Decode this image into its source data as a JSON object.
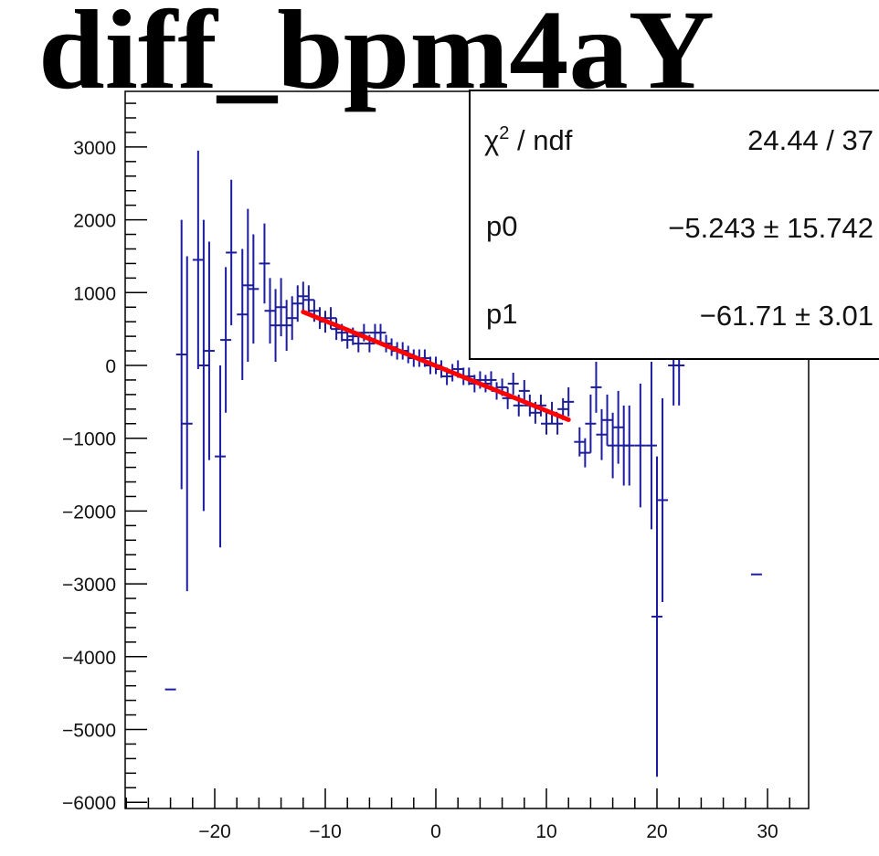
{
  "chart_data": {
    "type": "scatter",
    "title": "diff_bpm4aY",
    "xlabel": "",
    "ylabel": "",
    "xlim": [
      -28,
      34
    ],
    "ylim": [
      -6100,
      3700
    ],
    "x_ticks": [
      -20,
      -10,
      0,
      10,
      20,
      30
    ],
    "x_tick_labels": [
      "−20",
      "−10",
      "0",
      "10",
      "20",
      "30"
    ],
    "y_ticks": [
      -6000,
      -5000,
      -4000,
      -3000,
      -2000,
      -1000,
      0,
      1000,
      2000,
      3000
    ],
    "y_tick_labels": [
      "−6000",
      "−5000",
      "−4000",
      "−3000",
      "−2000",
      "−1000",
      "0",
      "1000",
      "2000",
      "3000"
    ],
    "grid": false,
    "series": [
      {
        "color": "#1c1ca0",
        "points": [
          {
            "x": -24,
            "y": -4450,
            "err": 0
          },
          {
            "x": -23,
            "y": 150,
            "err": 1850
          },
          {
            "x": -22.5,
            "y": -800,
            "err": 2300
          },
          {
            "x": -21.5,
            "y": 1450,
            "err": 1500
          },
          {
            "x": -21,
            "y": 0,
            "err": 2000
          },
          {
            "x": -20.5,
            "y": 200,
            "err": 1500
          },
          {
            "x": -19.5,
            "y": -1250,
            "err": 1250
          },
          {
            "x": -19,
            "y": 350,
            "err": 1000
          },
          {
            "x": -18.5,
            "y": 1550,
            "err": 1000
          },
          {
            "x": -17.5,
            "y": 700,
            "err": 900
          },
          {
            "x": -17,
            "y": 1100,
            "err": 1050
          },
          {
            "x": -16.5,
            "y": 1050,
            "err": 750
          },
          {
            "x": -15.5,
            "y": 1400,
            "err": 550
          },
          {
            "x": -15,
            "y": 750,
            "err": 450
          },
          {
            "x": -14.5,
            "y": 550,
            "err": 500
          },
          {
            "x": -14,
            "y": 800,
            "err": 400
          },
          {
            "x": -13.5,
            "y": 550,
            "err": 350
          },
          {
            "x": -13,
            "y": 650,
            "err": 300
          },
          {
            "x": -12.5,
            "y": 850,
            "err": 250
          },
          {
            "x": -12,
            "y": 950,
            "err": 200
          },
          {
            "x": -11.5,
            "y": 900,
            "err": 200
          },
          {
            "x": -11,
            "y": 750,
            "err": 150
          },
          {
            "x": -10.5,
            "y": 650,
            "err": 150
          },
          {
            "x": -10,
            "y": 600,
            "err": 150
          },
          {
            "x": -9.5,
            "y": 650,
            "err": 150
          },
          {
            "x": -9,
            "y": 500,
            "err": 150
          },
          {
            "x": -8.5,
            "y": 450,
            "err": 120
          },
          {
            "x": -8,
            "y": 350,
            "err": 120
          },
          {
            "x": -7.5,
            "y": 400,
            "err": 120
          },
          {
            "x": -7,
            "y": 300,
            "err": 120
          },
          {
            "x": -6.5,
            "y": 450,
            "err": 120
          },
          {
            "x": -6,
            "y": 300,
            "err": 120
          },
          {
            "x": -5.5,
            "y": 450,
            "err": 120
          },
          {
            "x": -5,
            "y": 450,
            "err": 120
          },
          {
            "x": -4.5,
            "y": 300,
            "err": 120
          },
          {
            "x": -4,
            "y": 250,
            "err": 120
          },
          {
            "x": -3.5,
            "y": 200,
            "err": 120
          },
          {
            "x": -3,
            "y": 200,
            "err": 120
          },
          {
            "x": -2.5,
            "y": 150,
            "err": 120
          },
          {
            "x": -2,
            "y": 100,
            "err": 120
          },
          {
            "x": -1.5,
            "y": 100,
            "err": 120
          },
          {
            "x": -1,
            "y": 100,
            "err": 120
          },
          {
            "x": -0.5,
            "y": 0,
            "err": 120
          },
          {
            "x": 0,
            "y": 0,
            "err": 120
          },
          {
            "x": 0.5,
            "y": -50,
            "err": 120
          },
          {
            "x": 1,
            "y": -150,
            "err": 120
          },
          {
            "x": 1.5,
            "y": -100,
            "err": 120
          },
          {
            "x": 2,
            "y": -50,
            "err": 120
          },
          {
            "x": 2.5,
            "y": -150,
            "err": 120
          },
          {
            "x": 3,
            "y": -150,
            "err": 120
          },
          {
            "x": 3.5,
            "y": -250,
            "err": 120
          },
          {
            "x": 4,
            "y": -200,
            "err": 120
          },
          {
            "x": 4.5,
            "y": -250,
            "err": 120
          },
          {
            "x": 5,
            "y": -200,
            "err": 120
          },
          {
            "x": 5.5,
            "y": -350,
            "err": 120
          },
          {
            "x": 6,
            "y": -300,
            "err": 120
          },
          {
            "x": 6.5,
            "y": -450,
            "err": 150
          },
          {
            "x": 7,
            "y": -250,
            "err": 150
          },
          {
            "x": 7.5,
            "y": -550,
            "err": 150
          },
          {
            "x": 8,
            "y": -350,
            "err": 150
          },
          {
            "x": 8.5,
            "y": -550,
            "err": 150
          },
          {
            "x": 9,
            "y": -650,
            "err": 150
          },
          {
            "x": 9.5,
            "y": -550,
            "err": 150
          },
          {
            "x": 10,
            "y": -800,
            "err": 150
          },
          {
            "x": 10.5,
            "y": -650,
            "err": 150
          },
          {
            "x": 11,
            "y": -800,
            "err": 150
          },
          {
            "x": 11.5,
            "y": -600,
            "err": 150
          },
          {
            "x": 12,
            "y": -500,
            "err": 200
          },
          {
            "x": 13,
            "y": -1050,
            "err": 200
          },
          {
            "x": 13.5,
            "y": -1200,
            "err": 200
          },
          {
            "x": 14,
            "y": -800,
            "err": 400
          },
          {
            "x": 14.5,
            "y": -300,
            "err": 350
          },
          {
            "x": 15,
            "y": -950,
            "err": 350
          },
          {
            "x": 15.5,
            "y": -750,
            "err": 350
          },
          {
            "x": 16,
            "y": -1100,
            "err": 450
          },
          {
            "x": 16.5,
            "y": -850,
            "err": 500
          },
          {
            "x": 17,
            "y": -1100,
            "err": 550
          },
          {
            "x": 17.5,
            "y": -1100,
            "err": 550
          },
          {
            "x": 18.5,
            "y": -1100,
            "err": 850
          },
          {
            "x": 19.5,
            "y": -1100,
            "err": 1150
          },
          {
            "x": 20,
            "y": -3450,
            "err": 2200
          },
          {
            "x": 20.5,
            "y": -1850,
            "err": 1400
          },
          {
            "x": 21.5,
            "y": 0,
            "err": 550
          },
          {
            "x": 22,
            "y": 0,
            "err": 550
          },
          {
            "x": 29,
            "y": -2870,
            "err": 0
          }
        ]
      }
    ],
    "fit": {
      "color": "#ff0000",
      "x_range": [
        -12,
        12
      ],
      "p0": -5.243,
      "p1": -61.71
    }
  },
  "stats": {
    "chi2_value": "24.44 / 37",
    "p0_label": "p0",
    "p0_value": "−5.243 ± 15.742",
    "p1_label": "p1",
    "p1_value": "−61.71 ± 3.01"
  }
}
